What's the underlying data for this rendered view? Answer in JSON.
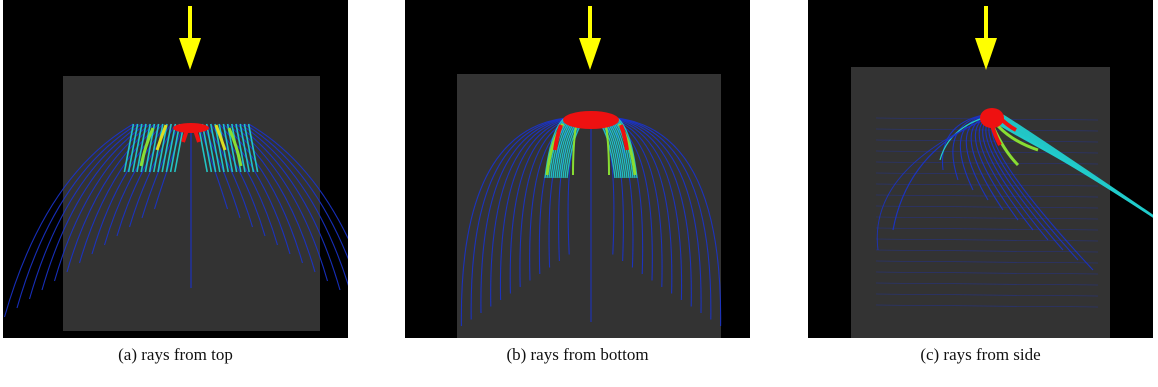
{
  "colors": {
    "background": "#000000",
    "plot_box": "#333333",
    "arrow": "#ffff00",
    "ray_low": "#1a33cc",
    "ray_mid": "#22cccc",
    "ray_high": "#ee1111"
  },
  "icons": {
    "arrow": "down-arrow-icon"
  },
  "figure": {
    "panels": [
      {
        "id": "a",
        "caption": "(a) rays from top"
      },
      {
        "id": "b",
        "caption": "(b) rays from bottom"
      },
      {
        "id": "c",
        "caption": "(c) rays from side"
      }
    ]
  }
}
